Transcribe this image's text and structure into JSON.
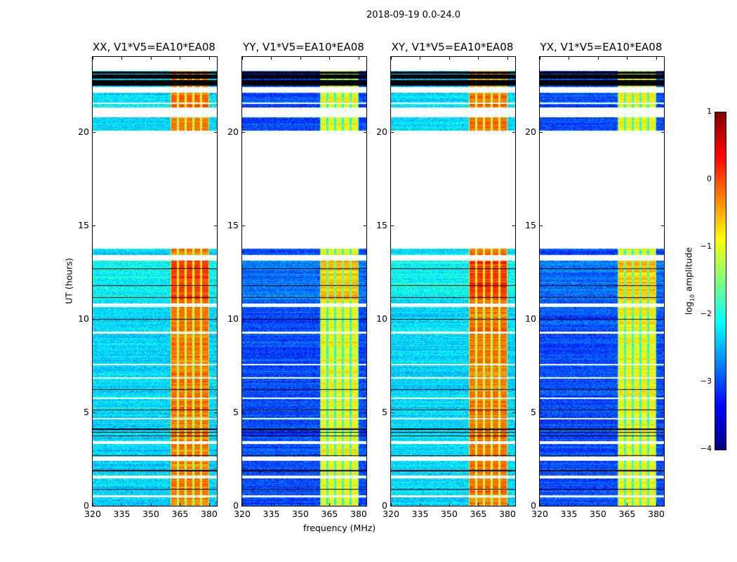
{
  "chart_data": {
    "type": "heatmap",
    "suptitle": "2018-09-19 0.0-24.0",
    "xlabel": "frequency (MHz)",
    "ylabel": "UT (hours)",
    "xlim": [
      320,
      384
    ],
    "ylim": [
      0,
      24
    ],
    "xticks": [
      320,
      335,
      350,
      365,
      380
    ],
    "yticks": [
      0,
      5,
      10,
      15,
      20
    ],
    "panels": [
      {
        "title": "XX, V1*V5=EA10*EA08",
        "background_level": -2.3,
        "band_level": -0.2
      },
      {
        "title": "YY, V1*V5=EA10*EA08",
        "background_level": -3.0,
        "band_level": -0.9
      },
      {
        "title": "XY, V1*V5=EA10*EA08",
        "background_level": -2.3,
        "band_level": -0.2
      },
      {
        "title": "YX, V1*V5=EA10*EA08",
        "background_level": -3.0,
        "band_level": -0.9
      }
    ],
    "band_MHz": [
      360,
      380
    ],
    "subband_edges_MHz": [
      360,
      364,
      368,
      372,
      376,
      380
    ],
    "flagged_hours": [
      [
        0.45,
        0.58
      ],
      [
        1.45,
        1.62
      ],
      [
        2.4,
        2.62
      ],
      [
        3.3,
        3.45
      ],
      [
        4.62,
        4.7
      ],
      [
        5.72,
        5.8
      ],
      [
        6.8,
        6.86
      ],
      [
        7.5,
        7.6
      ],
      [
        9.2,
        9.3
      ],
      [
        10.62,
        10.8
      ],
      [
        13.1,
        13.4
      ],
      [
        13.75,
        20.05
      ],
      [
        20.78,
        21.3
      ],
      [
        21.5,
        21.55
      ],
      [
        22.1,
        22.4
      ],
      [
        23.25,
        24
      ]
    ],
    "black_hours": [
      [
        0.85,
        0.92
      ],
      [
        1.85,
        1.9
      ],
      [
        2.66,
        2.72
      ],
      [
        3.7,
        3.76
      ],
      [
        3.9,
        3.96
      ],
      [
        4.05,
        4.12
      ],
      [
        5.1,
        5.14
      ],
      [
        6.2,
        6.25
      ],
      [
        9.95,
        10.0
      ],
      [
        11.1,
        11.15
      ],
      [
        11.75,
        11.8
      ],
      [
        12.65,
        12.7
      ],
      [
        16.15,
        16.22
      ],
      [
        17.92,
        17.96
      ],
      [
        20.9,
        21.05
      ],
      [
        21.2,
        21.28
      ],
      [
        22.45,
        22.75
      ],
      [
        22.82,
        23.05
      ],
      [
        23.1,
        23.22
      ]
    ],
    "colorbar": {
      "label": "log10 amplitude",
      "label_main": "log",
      "label_sub": "10",
      "label_rest": " amplitude",
      "range": [
        -4,
        1
      ],
      "ticks": [
        "1",
        "0",
        "−1",
        "−2",
        "−3",
        "−4"
      ],
      "colormap": "jet"
    }
  }
}
